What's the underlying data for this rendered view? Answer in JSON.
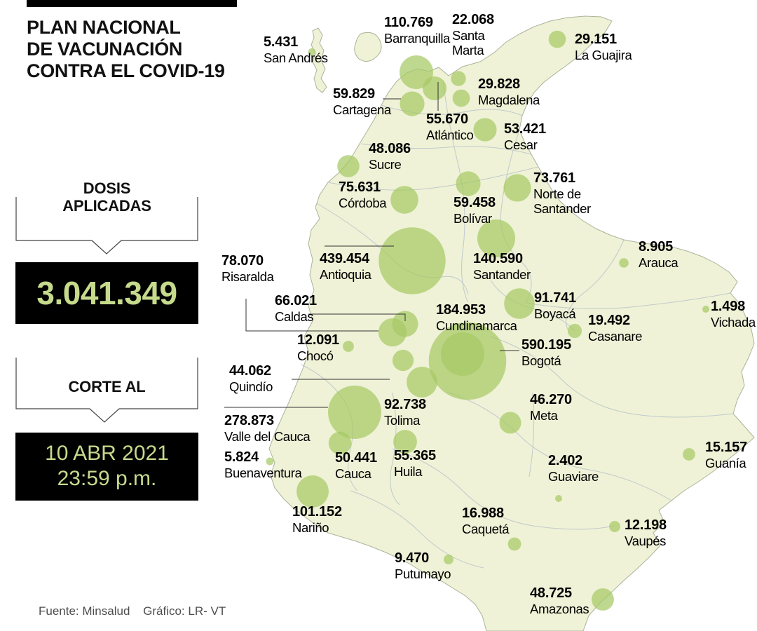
{
  "header": {
    "title_lines": [
      "PLAN NACIONAL",
      "DE VACUNACIÓN",
      "CONTRA EL COVID-19"
    ]
  },
  "panel": {
    "doses_label_line1": "DOSIS",
    "doses_label_line2": "APLICADAS",
    "total_doses": "3.041.349",
    "cutoff_label": "CORTE AL",
    "cutoff_line1": "10 ABR 2021",
    "cutoff_line2": "23:59 p.m."
  },
  "footer": {
    "source": "Fuente: Minsalud",
    "credit": "Gráfico: LR- VT"
  },
  "colors": {
    "bubble": "#a6c965",
    "land": "#eff2d6",
    "accent_text": "#c6da8c",
    "box_background": "#000000"
  },
  "chart_data": {
    "type": "bubble_map",
    "title": "PLAN NACIONAL DE VACUNACIÓN CONTRA EL COVID-19",
    "geography": "Colombia",
    "metric": "Dosis de vacuna COVID-19 aplicadas por departamento/ciudad",
    "total_doses": 3041349,
    "total_doses_label": "3.041.349",
    "cutoff": "10 ABR 2021 23:59 p.m.",
    "regions": [
      {
        "name": "San Andrés",
        "value": 5431,
        "label": "5.431"
      },
      {
        "name": "Barranquilla",
        "value": 110769,
        "label": "110.769"
      },
      {
        "name": "Santa Marta",
        "value": 22068,
        "label": "22.068"
      },
      {
        "name": "La Guajira",
        "value": 29151,
        "label": "29.151"
      },
      {
        "name": "Cartagena",
        "value": 59829,
        "label": "59.829"
      },
      {
        "name": "Magdalena",
        "value": 29828,
        "label": "29.828"
      },
      {
        "name": "Atlántico",
        "value": 55670,
        "label": "55.670"
      },
      {
        "name": "Cesar",
        "value": 53421,
        "label": "53.421"
      },
      {
        "name": "Sucre",
        "value": 48086,
        "label": "48.086"
      },
      {
        "name": "Norte de Santander",
        "value": 73761,
        "label": "73.761"
      },
      {
        "name": "Córdoba",
        "value": 75631,
        "label": "75.631"
      },
      {
        "name": "Bolívar",
        "value": 59458,
        "label": "59.458"
      },
      {
        "name": "Antioquia",
        "value": 439454,
        "label": "439.454"
      },
      {
        "name": "Santander",
        "value": 140590,
        "label": "140.590"
      },
      {
        "name": "Arauca",
        "value": 8905,
        "label": "8.905"
      },
      {
        "name": "Risaralda",
        "value": 78070,
        "label": "78.070"
      },
      {
        "name": "Caldas",
        "value": 66021,
        "label": "66.021"
      },
      {
        "name": "Cundinamarca",
        "value": 184953,
        "label": "184.953"
      },
      {
        "name": "Boyacá",
        "value": 91741,
        "label": "91.741"
      },
      {
        "name": "Casanare",
        "value": 19492,
        "label": "19.492"
      },
      {
        "name": "Vichada",
        "value": 1498,
        "label": "1.498"
      },
      {
        "name": "Chocó",
        "value": 12091,
        "label": "12.091"
      },
      {
        "name": "Bogotá",
        "value": 590195,
        "label": "590.195"
      },
      {
        "name": "Quindío",
        "value": 44062,
        "label": "44.062"
      },
      {
        "name": "Tolima",
        "value": 92738,
        "label": "92.738"
      },
      {
        "name": "Meta",
        "value": 46270,
        "label": "46.270"
      },
      {
        "name": "Valle del Cauca",
        "value": 278873,
        "label": "278.873"
      },
      {
        "name": "Buenaventura",
        "value": 5824,
        "label": "5.824"
      },
      {
        "name": "Cauca",
        "value": 50441,
        "label": "50.441"
      },
      {
        "name": "Huila",
        "value": 55365,
        "label": "55.365"
      },
      {
        "name": "Guaviare",
        "value": 2402,
        "label": "2.402"
      },
      {
        "name": "Guanía",
        "value": 15157,
        "label": "15.157"
      },
      {
        "name": "Nariño",
        "value": 101152,
        "label": "101.152"
      },
      {
        "name": "Caquetá",
        "value": 16988,
        "label": "16.988"
      },
      {
        "name": "Vaupés",
        "value": 12198,
        "label": "12.198"
      },
      {
        "name": "Putumayo",
        "value": 9470,
        "label": "9.470"
      },
      {
        "name": "Amazonas",
        "value": 48725,
        "label": "48.725"
      }
    ]
  }
}
